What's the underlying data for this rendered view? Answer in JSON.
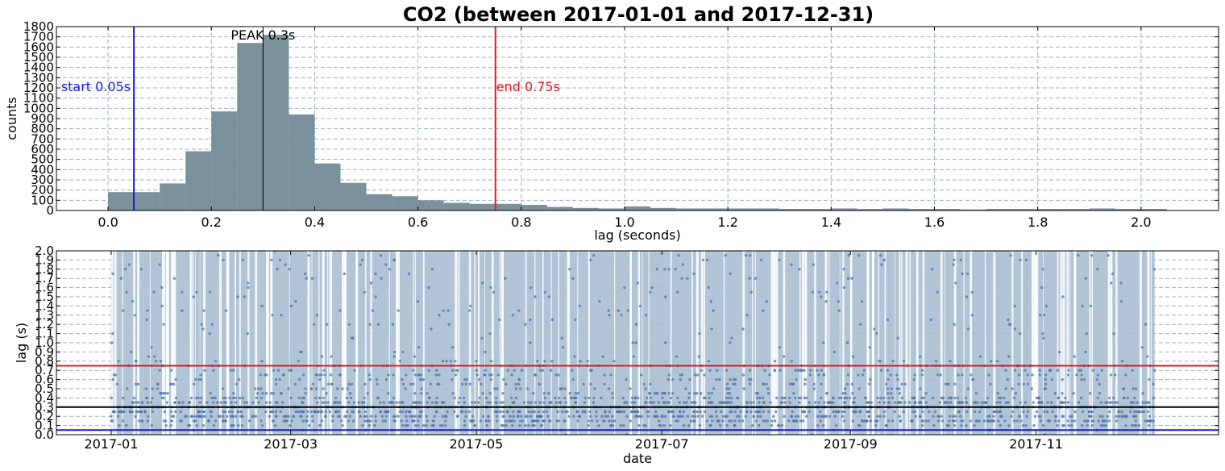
{
  "figure": {
    "title": "CO2 (between 2017-01-01 and 2017-12-31)"
  },
  "colors": {
    "bars": "#7a909b",
    "start_line": "#1a1adc",
    "end_line": "#e31a1a",
    "peak_line": "#000000",
    "band": "#aac0d4",
    "dots": "#4f74a8",
    "grid": "#9fb3bf"
  },
  "chart_data": [
    {
      "type": "bar",
      "title": "CO2 (between 2017-01-01 and 2017-12-31)",
      "xlabel": "lag (seconds)",
      "ylabel": "counts",
      "xlim": [
        -0.1,
        2.15
      ],
      "ylim": [
        0,
        1800
      ],
      "xticks": [
        0.0,
        0.2,
        0.4,
        0.6,
        0.8,
        1.0,
        1.2,
        1.4,
        1.6,
        1.8,
        2.0
      ],
      "xtick_labels": [
        "0.0",
        "0.2",
        "0.4",
        "0.6",
        "0.8",
        "1.0",
        "1.2",
        "1.4",
        "1.6",
        "1.8",
        "2.0"
      ],
      "yticks": [
        0,
        100,
        200,
        300,
        400,
        500,
        600,
        700,
        800,
        900,
        1000,
        1100,
        1200,
        1300,
        1400,
        1500,
        1600,
        1700,
        1800
      ],
      "grid": true,
      "bin_width": 0.05,
      "bins_start": [
        0.0,
        0.05,
        0.1,
        0.15,
        0.2,
        0.25,
        0.3,
        0.35,
        0.4,
        0.45,
        0.5,
        0.55,
        0.6,
        0.65,
        0.7,
        0.75,
        0.8,
        0.85,
        0.9,
        0.95,
        1.0,
        1.05,
        1.1,
        1.15,
        1.2,
        1.25,
        1.3,
        1.35,
        1.4,
        1.45,
        1.5,
        1.55,
        1.6,
        1.65,
        1.7,
        1.75,
        1.8,
        1.85,
        1.9,
        1.95,
        2.0
      ],
      "values": [
        180,
        180,
        265,
        580,
        970,
        1640,
        1720,
        940,
        460,
        270,
        160,
        140,
        100,
        75,
        65,
        65,
        55,
        35,
        25,
        20,
        40,
        25,
        20,
        20,
        20,
        20,
        15,
        15,
        20,
        15,
        20,
        15,
        15,
        10,
        15,
        15,
        15,
        15,
        20,
        15,
        15
      ],
      "vlines": [
        {
          "x": 0.05,
          "label": "start 0.05s",
          "color": "#1a1adc"
        },
        {
          "x": 0.75,
          "label": "end 0.75s",
          "color": "#e31a1a"
        },
        {
          "x": 0.3,
          "label": "PEAK 0.3s",
          "color": "#000000"
        }
      ]
    },
    {
      "type": "scatter",
      "xlabel": "date",
      "ylabel": "lag (s)",
      "xlim": [
        "2016-12-14",
        "2017-12-31"
      ],
      "ylim": [
        0.0,
        2.0
      ],
      "xticks": [
        "2017-01-01",
        "2017-03-01",
        "2017-05-01",
        "2017-07-01",
        "2017-09-01",
        "2017-11-01"
      ],
      "xtick_labels": [
        "2017-01",
        "2017-03",
        "2017-05",
        "2017-07",
        "2017-09",
        "2017-11"
      ],
      "yticks": [
        0.0,
        0.1,
        0.2,
        0.3,
        0.4,
        0.5,
        0.6,
        0.7,
        0.8,
        0.9,
        1.0,
        1.1,
        1.2,
        1.3,
        1.4,
        1.5,
        1.6,
        1.7,
        1.8,
        1.9,
        2.0
      ],
      "ytick_labels": [
        "0.0",
        "0.1",
        "0.2",
        "0.3",
        "0.4",
        "0.5",
        "0.6",
        "0.7",
        "0.8",
        "0.9",
        "1.0",
        "1.1",
        "1.2",
        "1.3",
        "1.4",
        "1.5",
        "1.6",
        "1.7",
        "1.8",
        "1.9",
        "2.0"
      ],
      "grid": true,
      "data_range": [
        "2017-01-01",
        "2017-12-10"
      ],
      "hlines": [
        {
          "y": 0.75,
          "color": "#e31a1a"
        },
        {
          "y": 0.3,
          "color": "#000000"
        },
        {
          "y": 0.05,
          "color": "#1a1adc"
        }
      ],
      "series": [
        {
          "approx_distribution": "dense dots concentrated at lag 0.1–0.4 s, sparser up to 2.0 s, across 2017-01-01 to 2017-12-10"
        }
      ]
    }
  ]
}
